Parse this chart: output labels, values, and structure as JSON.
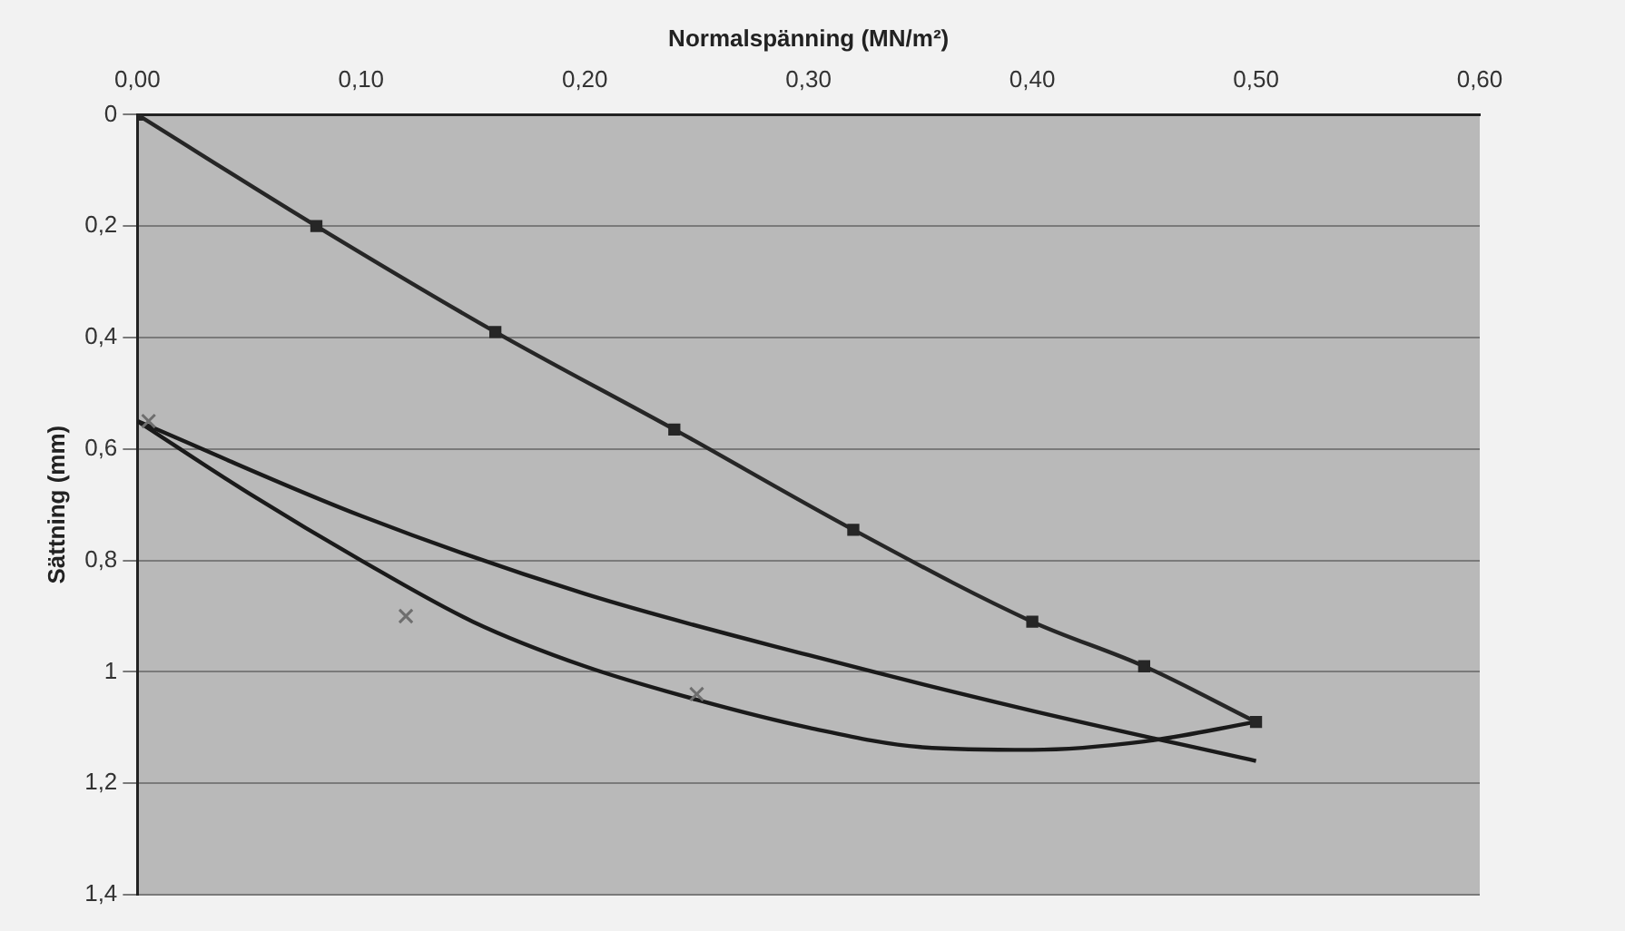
{
  "chart_data": {
    "type": "line",
    "xlabel": "Normalspänning (MN/m²)",
    "ylabel": "Sättning (mm)",
    "xlim": [
      0,
      0.6
    ],
    "xticks": [
      {
        "value": 0,
        "label": "0,00"
      },
      {
        "value": 0.1,
        "label": "0,10"
      },
      {
        "value": 0.2,
        "label": "0,20"
      },
      {
        "value": 0.3,
        "label": "0,30"
      },
      {
        "value": 0.4,
        "label": "0,40"
      },
      {
        "value": 0.5,
        "label": "0,50"
      },
      {
        "value": 0.6,
        "label": "0,60"
      }
    ],
    "ylim": [
      1.4,
      0
    ],
    "yticks": [
      0,
      {
        "value": 0.2,
        "label": "0,2"
      },
      {
        "value": 0.4,
        "label": "0,4"
      },
      {
        "value": 0.6,
        "label": "0,6"
      },
      {
        "value": 0.8,
        "label": "0,8"
      },
      1,
      {
        "value": 1.2,
        "label": "1,2"
      },
      {
        "value": 1.4,
        "label": "1,4"
      }
    ],
    "grid": "y",
    "legend": false,
    "series": [
      {
        "type": "line",
        "marker": "square",
        "color": "#262626",
        "x": [
          0,
          0.08,
          0.16,
          0.24,
          0.32,
          0.4,
          0.45,
          0.5
        ],
        "values": [
          0,
          0.2,
          0.39,
          0.565,
          0.745,
          0.91,
          0.99,
          1.09
        ]
      },
      {
        "type": "scatter",
        "marker": "cross",
        "color": "#6e6e6e",
        "x": [
          0.005,
          0.12,
          0.25
        ],
        "values": [
          0.55,
          0.9,
          1.04
        ]
      },
      {
        "type": "line",
        "marker": "none",
        "color": "#1a1a1a",
        "x": [
          0,
          0.05,
          0.1,
          0.15,
          0.2,
          0.25,
          0.3,
          0.35,
          0.4,
          0.45,
          0.5
        ],
        "values": [
          0.55,
          0.68,
          0.8,
          0.91,
          0.99,
          1.05,
          1.1,
          1.135,
          1.14,
          1.125,
          1.09
        ]
      },
      {
        "type": "line",
        "marker": "none",
        "color": "#1a1a1a",
        "x": [
          0,
          0.1,
          0.2,
          0.3,
          0.4,
          0.5
        ],
        "values": [
          0.55,
          0.72,
          0.86,
          0.97,
          1.07,
          1.16
        ]
      }
    ]
  }
}
